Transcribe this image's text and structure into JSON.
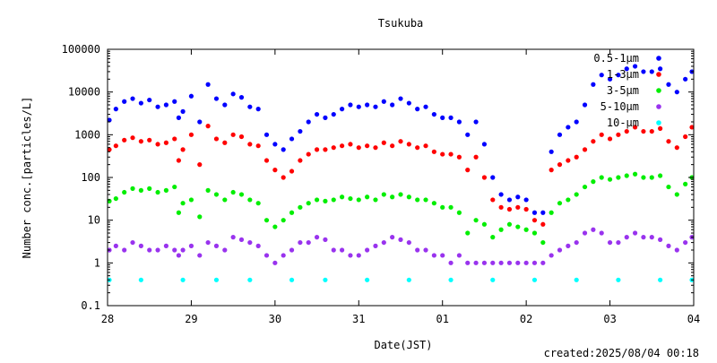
{
  "chart_data": {
    "type": "scatter",
    "title": "Tsukuba",
    "xlabel": "Date(JST)",
    "ylabel": "Number conc.[particles/L]",
    "y_scale": "log",
    "ylim": [
      0.1,
      100000
    ],
    "xlim": [
      0,
      7
    ],
    "x_ticks": [
      {
        "x": 0,
        "label": "28"
      },
      {
        "x": 1,
        "label": "29"
      },
      {
        "x": 2,
        "label": "30"
      },
      {
        "x": 3,
        "label": "31"
      },
      {
        "x": 4,
        "label": "01"
      },
      {
        "x": 5,
        "label": "02"
      },
      {
        "x": 6,
        "label": "03"
      },
      {
        "x": 7,
        "label": "04"
      }
    ],
    "y_ticks": [
      {
        "y": 0.1,
        "label": "0.1"
      },
      {
        "y": 1,
        "label": "1"
      },
      {
        "y": 10,
        "label": "10"
      },
      {
        "y": 100,
        "label": "100"
      },
      {
        "y": 1000,
        "label": "1000"
      },
      {
        "y": 10000,
        "label": "10000"
      },
      {
        "y": 100000,
        "label": "100000"
      }
    ],
    "legend_position": "top-right",
    "grid": false,
    "created": "created:2025/08/04 00:18",
    "series": [
      {
        "name": "0.5-1μm",
        "color": "#0000ff",
        "x": [
          0,
          0.1,
          0.2,
          0.3,
          0.4,
          0.5,
          0.6,
          0.7,
          0.8,
          0.85,
          0.9,
          1.0,
          1.1,
          1.2,
          1.3,
          1.4,
          1.5,
          1.6,
          1.7,
          1.8,
          1.9,
          2.0,
          2.1,
          2.2,
          2.3,
          2.4,
          2.5,
          2.6,
          2.7,
          2.8,
          2.9,
          3.0,
          3.1,
          3.2,
          3.3,
          3.4,
          3.5,
          3.6,
          3.7,
          3.8,
          3.9,
          4.0,
          4.1,
          4.2,
          4.3,
          4.4,
          4.5,
          4.6,
          4.7,
          4.8,
          4.9,
          5.0,
          5.1,
          5.2,
          5.3,
          5.4,
          5.5,
          5.6,
          5.7,
          5.8,
          5.9,
          6.0,
          6.1,
          6.2,
          6.3,
          6.4,
          6.5,
          6.6,
          6.7,
          6.8,
          6.9,
          7.0
        ],
        "values": [
          2200,
          4000,
          6000,
          7000,
          5500,
          6500,
          4500,
          5000,
          6000,
          2500,
          3500,
          8000,
          2000,
          15000,
          7000,
          5000,
          9000,
          7500,
          4500,
          4000,
          1000,
          600,
          450,
          800,
          1200,
          2000,
          3000,
          2500,
          3000,
          4000,
          5000,
          4500,
          5000,
          4500,
          6000,
          5000,
          7000,
          5500,
          4000,
          4500,
          3000,
          2500,
          2500,
          2000,
          1000,
          2000,
          600,
          100,
          40,
          30,
          35,
          30,
          15,
          15,
          400,
          1000,
          1500,
          2000,
          5000,
          15000,
          25000,
          20000,
          25000,
          35000,
          40000,
          30000,
          30000,
          35000,
          15000,
          10000,
          20000,
          30000
        ]
      },
      {
        "name": "1-3μm",
        "color": "#ff0000",
        "x": [
          0,
          0.1,
          0.2,
          0.3,
          0.4,
          0.5,
          0.6,
          0.7,
          0.8,
          0.85,
          0.9,
          1.0,
          1.1,
          1.2,
          1.3,
          1.4,
          1.5,
          1.6,
          1.7,
          1.8,
          1.9,
          2.0,
          2.1,
          2.2,
          2.3,
          2.4,
          2.5,
          2.6,
          2.7,
          2.8,
          2.9,
          3.0,
          3.1,
          3.2,
          3.3,
          3.4,
          3.5,
          3.6,
          3.7,
          3.8,
          3.9,
          4.0,
          4.1,
          4.2,
          4.3,
          4.4,
          4.5,
          4.6,
          4.7,
          4.8,
          4.9,
          5.0,
          5.1,
          5.2,
          5.3,
          5.4,
          5.5,
          5.6,
          5.7,
          5.8,
          5.9,
          6.0,
          6.1,
          6.2,
          6.3,
          6.4,
          6.5,
          6.6,
          6.7,
          6.8,
          6.9,
          7.0
        ],
        "values": [
          450,
          550,
          750,
          850,
          700,
          750,
          600,
          650,
          800,
          250,
          450,
          1000,
          200,
          1600,
          800,
          650,
          1000,
          900,
          600,
          550,
          250,
          150,
          100,
          140,
          250,
          350,
          450,
          450,
          500,
          550,
          600,
          500,
          550,
          500,
          650,
          550,
          700,
          600,
          500,
          550,
          400,
          350,
          350,
          300,
          150,
          300,
          100,
          30,
          20,
          18,
          20,
          18,
          10,
          8,
          150,
          200,
          250,
          300,
          450,
          700,
          1000,
          800,
          1000,
          1200,
          1500,
          1200,
          1200,
          1400,
          700,
          500,
          900,
          1500
        ]
      },
      {
        "name": "3-5μm",
        "color": "#00ee00",
        "x": [
          0,
          0.1,
          0.2,
          0.3,
          0.4,
          0.5,
          0.6,
          0.7,
          0.8,
          0.85,
          0.9,
          1.0,
          1.1,
          1.2,
          1.3,
          1.4,
          1.5,
          1.6,
          1.7,
          1.8,
          1.9,
          2.0,
          2.1,
          2.2,
          2.3,
          2.4,
          2.5,
          2.6,
          2.7,
          2.8,
          2.9,
          3.0,
          3.1,
          3.2,
          3.3,
          3.4,
          3.5,
          3.6,
          3.7,
          3.8,
          3.9,
          4.0,
          4.1,
          4.2,
          4.3,
          4.4,
          4.5,
          4.6,
          4.7,
          4.8,
          4.9,
          5.0,
          5.1,
          5.2,
          5.3,
          5.4,
          5.5,
          5.6,
          5.7,
          5.8,
          5.9,
          6.0,
          6.1,
          6.2,
          6.3,
          6.4,
          6.5,
          6.6,
          6.7,
          6.8,
          6.9,
          7.0
        ],
        "values": [
          28,
          32,
          45,
          55,
          50,
          55,
          45,
          50,
          60,
          15,
          25,
          30,
          12,
          50,
          40,
          30,
          45,
          40,
          30,
          25,
          10,
          7,
          10,
          15,
          20,
          25,
          30,
          28,
          30,
          35,
          32,
          30,
          35,
          30,
          40,
          35,
          40,
          35,
          30,
          30,
          25,
          20,
          20,
          15,
          5,
          10,
          8,
          4,
          6,
          8,
          7,
          6,
          5,
          3,
          15,
          25,
          30,
          40,
          60,
          80,
          100,
          90,
          100,
          110,
          120,
          100,
          100,
          110,
          60,
          40,
          70,
          100
        ]
      },
      {
        "name": "5-10μm",
        "color": "#9933ee",
        "x": [
          0,
          0.1,
          0.2,
          0.3,
          0.4,
          0.5,
          0.6,
          0.7,
          0.8,
          0.85,
          0.9,
          1.0,
          1.1,
          1.2,
          1.3,
          1.4,
          1.5,
          1.6,
          1.7,
          1.8,
          1.9,
          2.0,
          2.1,
          2.2,
          2.3,
          2.4,
          2.5,
          2.6,
          2.7,
          2.8,
          2.9,
          3.0,
          3.1,
          3.2,
          3.3,
          3.4,
          3.5,
          3.6,
          3.7,
          3.8,
          3.9,
          4.0,
          4.1,
          4.2,
          4.3,
          4.4,
          4.5,
          4.6,
          4.7,
          4.8,
          4.9,
          5.0,
          5.1,
          5.2,
          5.3,
          5.4,
          5.5,
          5.6,
          5.7,
          5.8,
          5.9,
          6.0,
          6.1,
          6.2,
          6.3,
          6.4,
          6.5,
          6.6,
          6.7,
          6.8,
          6.9,
          7.0
        ],
        "values": [
          2,
          2.5,
          2,
          3,
          2.5,
          2,
          2,
          2.5,
          2,
          1.5,
          2,
          2.5,
          1.5,
          3,
          2.5,
          2,
          4,
          3.5,
          3,
          2.5,
          1.5,
          1,
          1.5,
          2,
          3,
          3,
          4,
          3.5,
          2,
          2,
          1.5,
          1.5,
          2,
          2.5,
          3,
          4,
          3.5,
          3,
          2,
          2,
          1.5,
          1.5,
          1,
          1.5,
          1,
          1,
          1,
          1,
          1,
          1,
          1,
          1,
          1,
          1,
          1.5,
          2,
          2.5,
          3,
          5,
          6,
          5,
          3,
          3,
          4,
          5,
          4,
          4,
          3.5,
          2.5,
          2,
          3,
          4
        ]
      },
      {
        "name": "10-μm",
        "color": "#00ffff",
        "x": [
          0,
          0.4,
          0.9,
          1.3,
          1.7,
          2.2,
          2.6,
          3.1,
          3.6,
          4.1,
          4.6,
          5.1,
          5.6,
          6.1,
          6.6,
          7.0
        ],
        "values": [
          0.4,
          0.4,
          0.4,
          0.4,
          0.4,
          0.4,
          0.4,
          0.4,
          0.4,
          0.4,
          0.4,
          0.4,
          0.4,
          0.4,
          0.4,
          0.4
        ]
      }
    ]
  }
}
